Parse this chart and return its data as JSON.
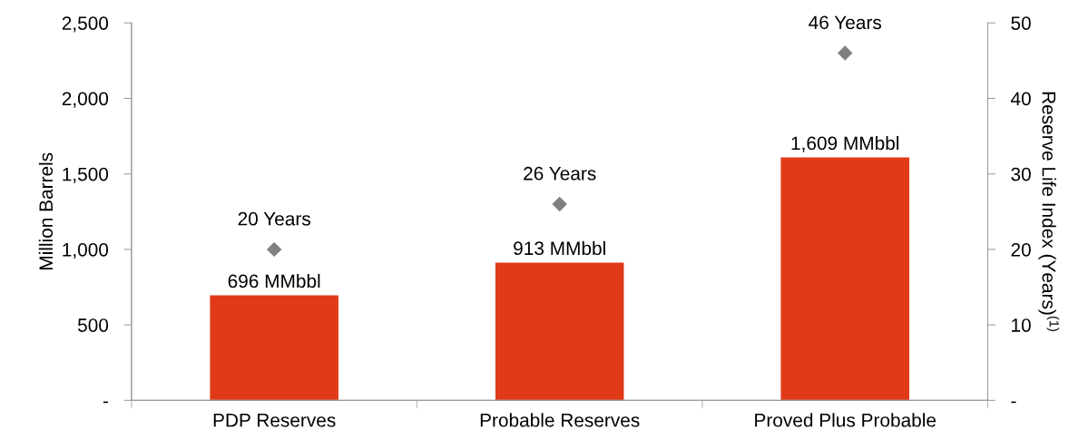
{
  "chart_data": {
    "type": "bar",
    "categories": [
      "PDP Reserves",
      "Probable Reserves",
      "Proved Plus Probable"
    ],
    "ylabel": "Million Barrels",
    "y2label": "Reserve Life Index (Years)$^{(1)}$",
    "ylim": [
      0,
      2500
    ],
    "yticks": [
      {
        "value": 0,
        "label": "-"
      },
      {
        "value": 500,
        "label": "500"
      },
      {
        "value": 1000,
        "label": "1,000"
      },
      {
        "value": 1500,
        "label": "1,500"
      },
      {
        "value": 2000,
        "label": "2,000"
      },
      {
        "value": 2500,
        "label": "2,500"
      }
    ],
    "y2lim": [
      0,
      50
    ],
    "y2ticks": [
      {
        "value": 0,
        "label": "-"
      },
      10,
      20,
      30,
      40,
      50
    ],
    "grid": false,
    "legend": false,
    "series": [
      {
        "color": "#e03a18",
        "values": [
          696,
          913,
          1609
        ],
        "value_labels": [
          "696 MMbbl",
          "913 MMbbl",
          "1,609 MMbbl"
        ]
      },
      {
        "type": "scatter",
        "axis": "y2",
        "marker": "diamond",
        "color": "#808080",
        "values": [
          20,
          26,
          46
        ],
        "value_labels": [
          "20 Years",
          "26 Years",
          "46 Years"
        ]
      }
    ]
  }
}
